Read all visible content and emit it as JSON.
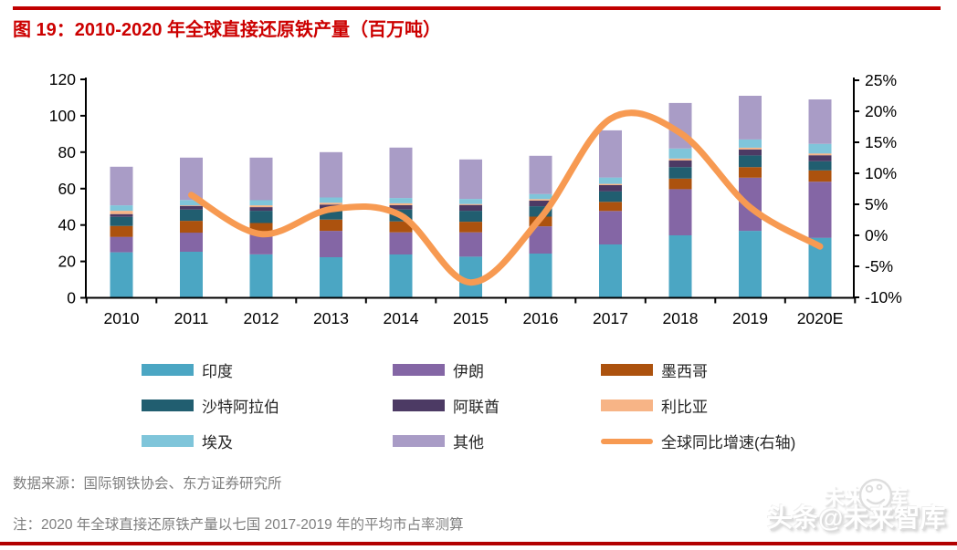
{
  "title": "图 19：2010-2020 年全球直接还原铁产量（百万吨）",
  "source_note": "数据来源：国际钢铁协会、东方证券研究所",
  "footnote": "注：2020 年全球直接还原铁产量以七国 2017-2019 年的平均市占率测算",
  "watermark": {
    "front_text": "头条@未来智库",
    "ghost_text": "未来智库",
    "logo": "smiley-chat-icon"
  },
  "colors": {
    "title_red": "#CC0000",
    "top_rule": "#C00000",
    "bottom_rule": "#B20000",
    "axis_black": "#000000",
    "footer_gray": "#7F7F7F",
    "line_orange": "#F79A52"
  },
  "legend": {
    "items": [
      {
        "label": "印度",
        "color": "#4BA6C3",
        "kind": "box"
      },
      {
        "label": "伊朗",
        "color": "#8466A5",
        "kind": "box"
      },
      {
        "label": "墨西哥",
        "color": "#AC520E",
        "kind": "box"
      },
      {
        "label": "沙特阿拉伯",
        "color": "#215E70",
        "kind": "box"
      },
      {
        "label": "阿联酋",
        "color": "#4C3A64",
        "kind": "box"
      },
      {
        "label": "利比亚",
        "color": "#F7B486",
        "kind": "box"
      },
      {
        "label": "埃及",
        "color": "#7FC5DA",
        "kind": "box"
      },
      {
        "label": "其他",
        "color": "#A99CC6",
        "kind": "box"
      },
      {
        "label": "全球同比增速(右轴)",
        "color": "#F79A52",
        "kind": "line"
      }
    ]
  },
  "chart_data": {
    "type": "bar+line",
    "stacked": true,
    "title": "2010-2020 年全球直接还原铁产量（百万吨）",
    "categories": [
      "2010",
      "2011",
      "2012",
      "2013",
      "2014",
      "2015",
      "2016",
      "2017",
      "2018",
      "2019",
      "2020E"
    ],
    "series": [
      {
        "name": "印度",
        "color": "#4BA6C3",
        "values": [
          25.0,
          25.3,
          23.8,
          22.3,
          23.8,
          22.6,
          24.3,
          29.3,
          34.3,
          36.8,
          33.0
        ]
      },
      {
        "name": "伊朗",
        "color": "#8466A5",
        "values": [
          8.5,
          10.5,
          12.0,
          14.5,
          12.2,
          13.4,
          15.0,
          18.4,
          25.4,
          29.2,
          30.8
        ]
      },
      {
        "name": "墨西哥",
        "color": "#AC520E",
        "values": [
          6.0,
          6.5,
          5.3,
          6.2,
          6.0,
          5.8,
          5.3,
          5.0,
          5.8,
          5.8,
          6.2
        ]
      },
      {
        "name": "沙特阿拉伯",
        "color": "#215E70",
        "values": [
          5.0,
          6.2,
          6.7,
          5.8,
          6.5,
          6.0,
          5.7,
          5.8,
          6.3,
          6.4,
          5.0
        ]
      },
      {
        "name": "阿联酋",
        "color": "#4C3A64",
        "values": [
          1.5,
          2.0,
          2.0,
          2.4,
          2.4,
          3.2,
          3.1,
          3.4,
          3.7,
          3.3,
          3.3
        ]
      },
      {
        "name": "利比亚",
        "color": "#F7B486",
        "values": [
          1.8,
          0.3,
          1.0,
          1.0,
          1.0,
          0.5,
          0.8,
          0.7,
          1.0,
          1.0,
          1.0
        ]
      },
      {
        "name": "埃及",
        "color": "#7FC5DA",
        "values": [
          3.0,
          2.9,
          2.8,
          2.9,
          2.9,
          2.8,
          2.8,
          3.5,
          5.5,
          4.5,
          5.3
        ]
      },
      {
        "name": "其他",
        "color": "#A99CC6",
        "values": [
          21.2,
          23.3,
          23.4,
          24.9,
          27.7,
          21.7,
          21.0,
          25.9,
          25.0,
          24.0,
          24.4
        ]
      }
    ],
    "bar_totals": [
      72,
      77,
      77,
      80,
      82.5,
      76,
      78,
      92,
      107,
      111,
      109
    ],
    "line_series": {
      "name": "全球同比增速(右轴)",
      "axis": "right",
      "color": "#F79A52",
      "values_pct": [
        null,
        6.5,
        0.2,
        4.2,
        3.2,
        -7.6,
        2.8,
        18.8,
        16.5,
        4.5,
        -1.8
      ]
    },
    "left_axis": {
      "min": 0,
      "max": 120,
      "tick_values": [
        0,
        20,
        40,
        60,
        80,
        100,
        120
      ]
    },
    "right_axis": {
      "tick_values": [
        25,
        20,
        15,
        10,
        5,
        0,
        -5,
        -10
      ],
      "tick_labels": [
        "25%",
        "20%",
        "15%",
        "10%",
        "5%",
        "0%",
        "-5%",
        "-10%"
      ]
    },
    "grid": false,
    "legend_position": "bottom"
  }
}
